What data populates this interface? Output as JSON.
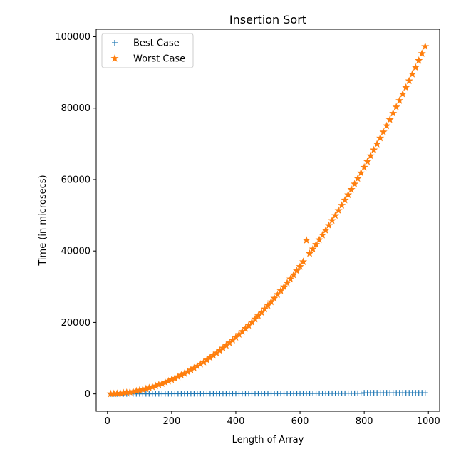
{
  "chart_data": {
    "type": "scatter",
    "title": "Insertion Sort",
    "xlabel": "Length of Array",
    "ylabel": "Time (in microsecs)",
    "xlim": [
      -35,
      1035
    ],
    "ylim": [
      -4860,
      102100
    ],
    "xticks": [
      0,
      200,
      400,
      600,
      800,
      1000
    ],
    "yticks": [
      0,
      20000,
      40000,
      60000,
      80000,
      100000
    ],
    "grid": false,
    "legend_position": "top-left",
    "series": [
      {
        "name": "Best Case",
        "marker": "plus",
        "color": "#1f77b4",
        "x": [
          10,
          20,
          30,
          40,
          50,
          60,
          70,
          80,
          90,
          100,
          110,
          120,
          130,
          140,
          150,
          160,
          170,
          180,
          190,
          200,
          210,
          220,
          230,
          240,
          250,
          260,
          270,
          280,
          290,
          300,
          310,
          320,
          330,
          340,
          350,
          360,
          370,
          380,
          390,
          400,
          410,
          420,
          430,
          440,
          450,
          460,
          470,
          480,
          490,
          500,
          510,
          520,
          530,
          540,
          550,
          560,
          570,
          580,
          590,
          600,
          610,
          620,
          630,
          640,
          650,
          660,
          670,
          680,
          690,
          700,
          710,
          720,
          730,
          740,
          750,
          760,
          770,
          780,
          790,
          800,
          810,
          820,
          830,
          840,
          850,
          860,
          870,
          880,
          890,
          900,
          910,
          920,
          930,
          940,
          950,
          960,
          970,
          980,
          990
        ],
        "y": [
          2,
          4,
          6,
          8,
          10,
          12,
          14,
          16,
          18,
          20,
          22,
          24,
          26,
          28,
          30,
          32,
          34,
          36,
          38,
          40,
          42,
          44,
          46,
          48,
          50,
          52,
          54,
          56,
          58,
          60,
          62,
          64,
          66,
          68,
          70,
          72,
          74,
          76,
          78,
          80,
          82,
          84,
          86,
          88,
          90,
          92,
          94,
          96,
          98,
          100,
          102,
          104,
          106,
          108,
          110,
          112,
          114,
          116,
          118,
          120,
          122,
          124,
          126,
          128,
          130,
          132,
          134,
          136,
          138,
          140,
          142,
          144,
          146,
          148,
          150,
          152,
          154,
          156,
          158,
          300,
          300,
          300,
          300,
          300,
          300,
          300,
          300,
          300,
          300,
          300,
          300,
          300,
          300,
          300,
          300,
          300,
          300,
          300,
          300
        ]
      },
      {
        "name": "Worst Case",
        "marker": "star",
        "color": "#ff7f0e",
        "x": [
          10,
          20,
          30,
          40,
          50,
          60,
          70,
          80,
          90,
          100,
          110,
          120,
          130,
          140,
          150,
          160,
          170,
          180,
          190,
          200,
          210,
          220,
          230,
          240,
          250,
          260,
          270,
          280,
          290,
          300,
          310,
          320,
          330,
          340,
          350,
          360,
          370,
          380,
          390,
          400,
          410,
          420,
          430,
          440,
          450,
          460,
          470,
          480,
          490,
          500,
          510,
          520,
          530,
          540,
          550,
          560,
          570,
          580,
          590,
          600,
          610,
          620,
          630,
          640,
          650,
          660,
          670,
          680,
          690,
          700,
          710,
          720,
          730,
          740,
          750,
          760,
          770,
          780,
          790,
          800,
          810,
          820,
          830,
          840,
          850,
          860,
          870,
          880,
          890,
          900,
          910,
          920,
          930,
          940,
          950,
          960,
          970,
          980,
          990
        ],
        "y": [
          10,
          39,
          89,
          158,
          248,
          356,
          485,
          634,
          802,
          990,
          1198,
          1426,
          1673,
          1940,
          2228,
          2534,
          2861,
          3208,
          3574,
          3960,
          4366,
          4792,
          5237,
          5702,
          6188,
          6692,
          7217,
          7762,
          8326,
          8910,
          9514,
          10138,
          10781,
          11444,
          12128,
          12830,
          13553,
          14296,
          15058,
          15840,
          16642,
          17464,
          18305,
          19166,
          20048,
          20948,
          21869,
          22810,
          23770,
          24750,
          25750,
          26770,
          27809,
          28868,
          29948,
          31046,
          32165,
          33304,
          34462,
          35640,
          37000,
          43000,
          39289,
          40550,
          41830,
          43130,
          44450,
          45790,
          47150,
          48530,
          49930,
          51350,
          52790,
          54250,
          55730,
          57230,
          58750,
          60290,
          61850,
          63430,
          65030,
          66650,
          68290,
          69950,
          71630,
          73330,
          75050,
          76790,
          78550,
          80330,
          82130,
          83950,
          85790,
          87650,
          89530,
          91430,
          93350,
          95290,
          97250
        ]
      }
    ]
  }
}
